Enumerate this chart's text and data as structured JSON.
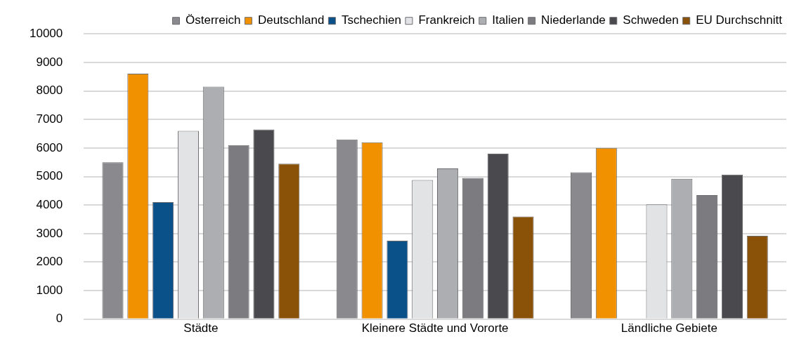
{
  "chart_data": {
    "type": "bar",
    "categories": [
      "Städte",
      "Kleinere Städte und Vororte",
      "Ländliche Gebiete"
    ],
    "series": [
      {
        "name": "Österreich",
        "color": "#8a8a8e",
        "values": [
          5500,
          6300,
          5150
        ]
      },
      {
        "name": "Deutschland",
        "color": "#f29100",
        "values": [
          8600,
          6200,
          6000
        ]
      },
      {
        "name": "Tschechien",
        "color": "#0a5089",
        "values": [
          4100,
          2750,
          null
        ]
      },
      {
        "name": "Frankreich",
        "color": "#e2e3e5",
        "values": [
          6600,
          4880,
          4020
        ]
      },
      {
        "name": "Italien",
        "color": "#acaeb2",
        "values": [
          8150,
          5280,
          4920
        ]
      },
      {
        "name": "Niederlande",
        "color": "#7c7c80",
        "values": [
          6100,
          4950,
          4350
        ]
      },
      {
        "name": "Schweden",
        "color": "#4a4a4e",
        "values": [
          6650,
          5800,
          5070
        ]
      },
      {
        "name": "EU Durchschnitt",
        "color": "#8a5208",
        "values": [
          5450,
          3600,
          2920
        ]
      }
    ],
    "ylim": [
      0,
      10000
    ],
    "yticks": [
      0,
      1000,
      2000,
      3000,
      4000,
      5000,
      6000,
      7000,
      8000,
      9000,
      10000
    ],
    "grid": "y",
    "legend": "top right"
  }
}
